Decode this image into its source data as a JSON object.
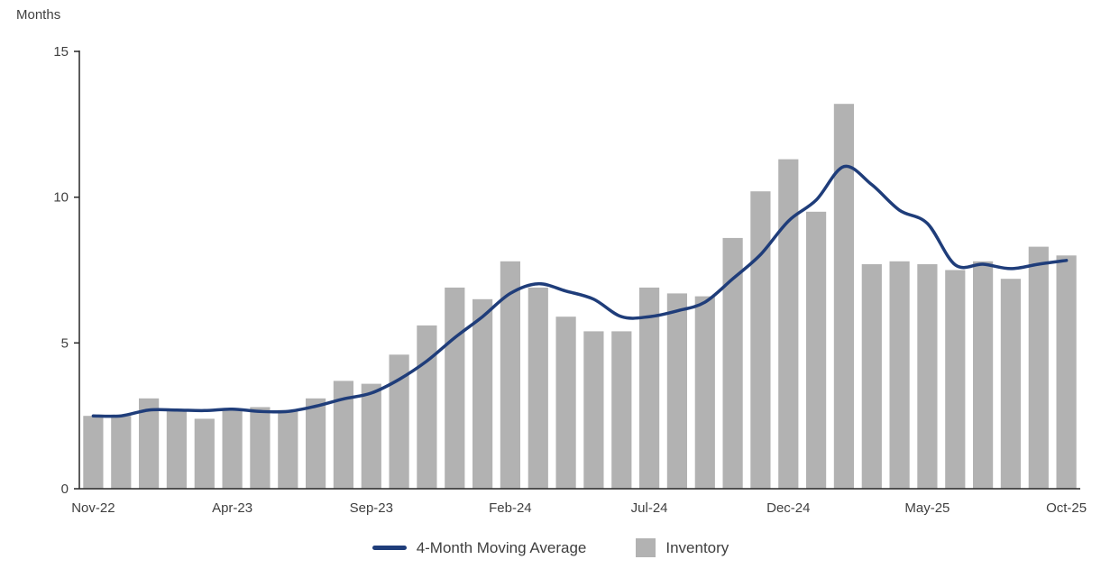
{
  "chart_data": {
    "type": "bar",
    "title": "",
    "ylabel": "Months",
    "xlabel": "",
    "ylim": [
      0,
      15
    ],
    "yticks": [
      0,
      5,
      10,
      15
    ],
    "grid": false,
    "legend_position": "bottom",
    "categories": [
      "Nov-22",
      "Dec-22",
      "Jan-23",
      "Feb-23",
      "Mar-23",
      "Apr-23",
      "May-23",
      "Jun-23",
      "Jul-23",
      "Aug-23",
      "Sep-23",
      "Oct-23",
      "Nov-23",
      "Dec-23",
      "Jan-24",
      "Feb-24",
      "Mar-24",
      "Apr-24",
      "May-24",
      "Jun-24",
      "Jul-24",
      "Aug-24",
      "Sep-24",
      "Oct-24",
      "Nov-24",
      "Dec-24",
      "Jan-25",
      "Feb-25",
      "Mar-25",
      "Apr-25",
      "May-25",
      "Jun-25",
      "Jul-25",
      "Aug-25",
      "Sep-25",
      "Oct-25"
    ],
    "x_tick_labels": [
      "Nov-22",
      "Apr-23",
      "Sep-23",
      "Feb-24",
      "Jul-24",
      "Dec-24",
      "May-25",
      "Oct-25"
    ],
    "x_tick_indices": [
      0,
      5,
      10,
      15,
      20,
      25,
      30,
      35
    ],
    "series": [
      {
        "name": "4-Month Moving Average",
        "type": "line",
        "color": "#1f3d7a",
        "values": [
          2.5,
          2.5,
          2.7,
          2.7,
          2.68,
          2.73,
          2.65,
          2.65,
          2.83,
          3.08,
          3.28,
          3.75,
          4.38,
          5.18,
          5.9,
          6.7,
          7.03,
          6.78,
          6.5,
          5.9,
          5.9,
          6.1,
          6.4,
          7.2,
          8.03,
          9.18,
          9.9,
          11.05,
          10.43,
          9.55,
          9.1,
          7.68,
          7.7,
          7.55,
          7.7,
          7.83
        ]
      },
      {
        "name": "Inventory",
        "type": "bar",
        "color": "#b2b2b2",
        "values": [
          2.5,
          2.5,
          3.1,
          2.7,
          2.4,
          2.7,
          2.8,
          2.7,
          3.1,
          3.7,
          3.6,
          4.6,
          5.6,
          6.9,
          6.5,
          7.8,
          6.9,
          5.9,
          5.4,
          5.4,
          6.9,
          6.7,
          6.6,
          8.6,
          10.2,
          11.3,
          9.5,
          13.2,
          7.7,
          7.8,
          7.7,
          7.5,
          7.8,
          7.2,
          8.3,
          8.0
        ]
      }
    ],
    "colors": {
      "axis": "#262626",
      "tick_text": "#3f3f3f"
    }
  }
}
